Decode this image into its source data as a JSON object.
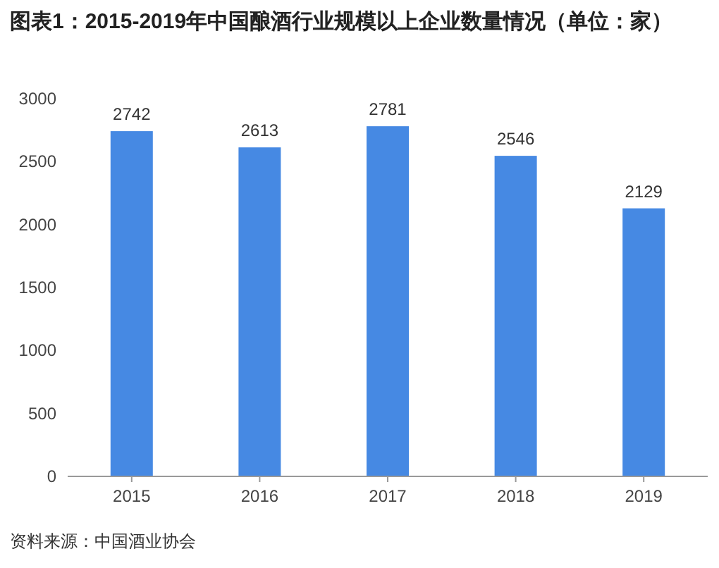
{
  "chart_data": {
    "type": "bar",
    "title": "图表1：2015-2019年中国酿酒行业规模以上企业数量情况（单位：家）",
    "categories": [
      "2015",
      "2016",
      "2017",
      "2018",
      "2019"
    ],
    "values": [
      2742,
      2613,
      2781,
      2546,
      2129
    ],
    "color": "#4689e3",
    "ylim": [
      0,
      3000
    ],
    "yticks": [
      0,
      500,
      1000,
      1500,
      2000,
      2500,
      3000
    ],
    "data_labels": true,
    "annotations": [
      "资料来源：中国酒业协会"
    ]
  }
}
